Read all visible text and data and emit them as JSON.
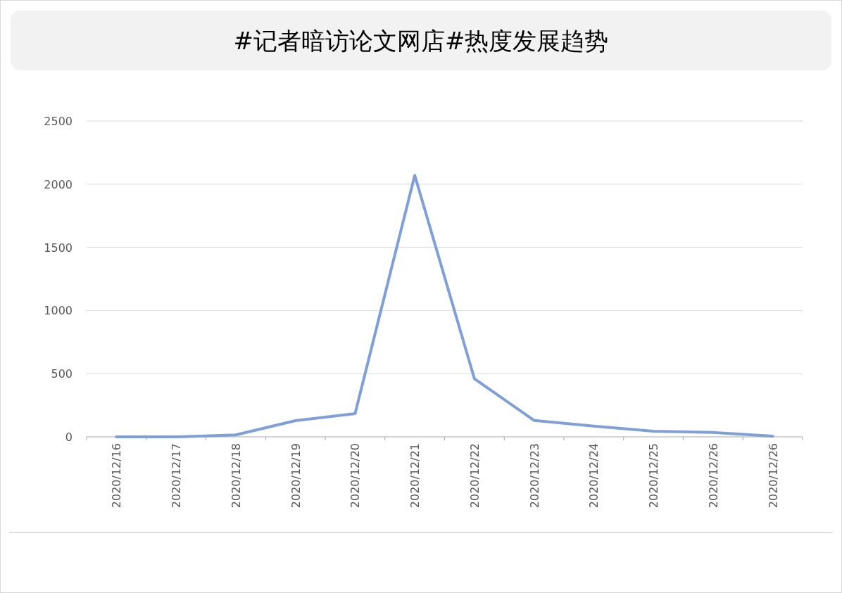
{
  "chart_data": {
    "type": "line",
    "title": "#记者暗访论文网店#热度发展趋势",
    "categories": [
      "2020/12/16",
      "2020/12/17",
      "2020/12/18",
      "2020/12/19",
      "2020/12/20",
      "2020/12/21",
      "2020/12/22",
      "2020/12/23",
      "2020/12/24",
      "2020/12/25",
      "2020/12/26",
      "2020/12/26"
    ],
    "series": [
      {
        "color": "#7f9fd6",
        "values": [
          0,
          0,
          15,
          128,
          184,
          2070,
          460,
          130,
          85,
          45,
          35,
          5
        ]
      }
    ],
    "ylim": [
      0,
      2500
    ],
    "yticks": [
      0,
      500,
      1000,
      1500,
      2000,
      2500
    ],
    "grid": "y",
    "line_style": "solid"
  }
}
